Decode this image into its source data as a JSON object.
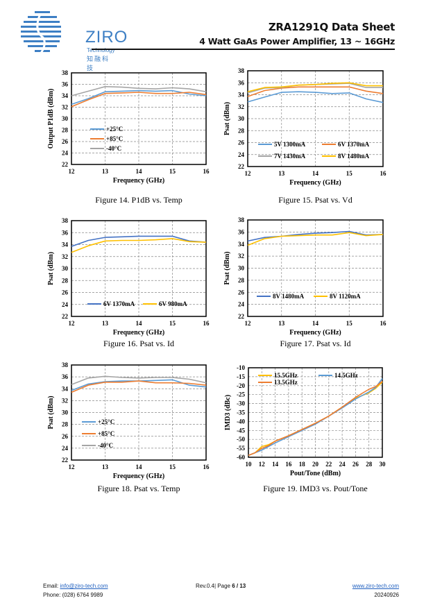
{
  "header": {
    "title": "ZRA1291Q Data Sheet",
    "subtitle": "4 Watt GaAs Power Amplifier, 13 ~ 16GHz",
    "logo_text": "ZIRO",
    "logo_sub": "Technology",
    "logo_cn": "知融科技"
  },
  "footer": {
    "email_label": "Email:",
    "email": "info@ziro-tech.com",
    "phone_label": "Phone:",
    "phone": "(028) 6764 9989",
    "rev": "Rev.0.4|",
    "page_label": "Page",
    "page": "6 / 13",
    "website": "www.ziro-tech.com",
    "date": "20240926"
  },
  "colors": {
    "blue": "#5B9BD5",
    "darkblue": "#4472C4",
    "orange": "#ED7D31",
    "gray": "#A5A5A5",
    "yellow": "#FFC000"
  },
  "chart_data": [
    {
      "type": "line",
      "caption": "Figure 14. P1dB vs. Temp",
      "xlabel": "Frequency (GHz)",
      "ylabel": "Output P1dB (dBm)",
      "xlim": [
        12,
        16
      ],
      "ylim": [
        22,
        38
      ],
      "xticks": [
        12,
        13,
        14,
        15,
        16
      ],
      "yticks": [
        22,
        24,
        26,
        28,
        30,
        32,
        34,
        36,
        38
      ],
      "grid": true,
      "legend": "bottom-left",
      "x": [
        12,
        12.5,
        13,
        13.5,
        14,
        14.5,
        15,
        15.5,
        16
      ],
      "series": [
        {
          "name": "+25°C",
          "color": "#5B9BD5",
          "values": [
            32.5,
            33.5,
            34.7,
            34.8,
            34.9,
            34.8,
            34.9,
            34.3,
            34.0
          ]
        },
        {
          "name": "+85°C",
          "color": "#ED7D31",
          "values": [
            32.1,
            33.3,
            34.4,
            34.5,
            34.6,
            34.4,
            34.4,
            34.6,
            34.2
          ]
        },
        {
          "name": "-40°C",
          "color": "#A5A5A5",
          "values": [
            34.0,
            34.8,
            35.6,
            35.5,
            35.3,
            35.2,
            35.4,
            35.2,
            34.7
          ]
        }
      ]
    },
    {
      "type": "line",
      "caption": "Figure 15. Psat vs. Vd",
      "xlabel": "Frequency (GHz)",
      "ylabel": "Psat (dBm)",
      "xlim": [
        12,
        16
      ],
      "ylim": [
        22,
        38
      ],
      "xticks": [
        12,
        13,
        14,
        15,
        16
      ],
      "yticks": [
        22,
        24,
        26,
        28,
        30,
        32,
        34,
        36,
        38
      ],
      "grid": true,
      "legend": "bottom",
      "x": [
        12,
        12.5,
        13,
        13.5,
        14,
        14.5,
        15,
        15.5,
        16
      ],
      "series": [
        {
          "name": "5V 1300mA",
          "color": "#5B9BD5",
          "values": [
            32.8,
            33.6,
            34.4,
            34.5,
            34.4,
            34.2,
            34.3,
            33.3,
            32.7
          ]
        },
        {
          "name": "6V 1370mA",
          "color": "#ED7D31",
          "values": [
            33.7,
            34.7,
            35.1,
            35.3,
            35.3,
            35.3,
            35.3,
            34.6,
            34.2
          ]
        },
        {
          "name": "7V 1430mA",
          "color": "#A5A5A5",
          "values": [
            34.3,
            35.1,
            35.2,
            35.6,
            35.7,
            35.8,
            35.9,
            35.2,
            35.2
          ]
        },
        {
          "name": "8V 1480mA",
          "color": "#FFC000",
          "values": [
            34.5,
            35.2,
            35.3,
            35.6,
            35.7,
            35.9,
            36.0,
            35.5,
            35.5
          ]
        }
      ]
    },
    {
      "type": "line",
      "caption": "Figure 16. Psat vs. Id",
      "xlabel": "Frequency (GHz)",
      "ylabel": "Psat (dBm)",
      "xlim": [
        12,
        16
      ],
      "ylim": [
        22,
        38
      ],
      "xticks": [
        12,
        13,
        14,
        15,
        16
      ],
      "yticks": [
        22,
        24,
        26,
        28,
        30,
        32,
        34,
        36,
        38
      ],
      "grid": true,
      "legend": "bottom",
      "x": [
        12,
        12.5,
        13,
        13.5,
        14,
        14.5,
        15,
        15.5,
        16
      ],
      "series": [
        {
          "name": "6V 1370mA",
          "color": "#4472C4",
          "values": [
            33.7,
            34.7,
            35.2,
            35.3,
            35.4,
            35.4,
            35.4,
            34.6,
            34.4
          ]
        },
        {
          "name": "6V 980mA",
          "color": "#FFC000",
          "values": [
            32.7,
            33.8,
            34.6,
            34.7,
            34.7,
            34.8,
            35.0,
            34.5,
            34.4
          ]
        }
      ]
    },
    {
      "type": "line",
      "caption": "Figure 17. Psat vs. Id",
      "xlabel": "Frequency (GHz)",
      "ylabel": "Psat (dBm)",
      "xlim": [
        12,
        16
      ],
      "ylim": [
        22,
        38
      ],
      "xticks": [
        12,
        13,
        14,
        15,
        16
      ],
      "yticks": [
        22,
        24,
        26,
        28,
        30,
        32,
        34,
        36,
        38
      ],
      "grid": true,
      "legend": "bottom",
      "x": [
        12,
        12.5,
        13,
        13.5,
        14,
        14.5,
        15,
        15.5,
        16
      ],
      "series": [
        {
          "name": "8V 1480mA",
          "color": "#4472C4",
          "values": [
            34.5,
            35.1,
            35.3,
            35.6,
            35.8,
            35.9,
            36.1,
            35.5,
            35.6
          ]
        },
        {
          "name": "8V 1120mA",
          "color": "#FFC000",
          "values": [
            33.8,
            34.9,
            35.3,
            35.4,
            35.5,
            35.5,
            35.9,
            35.4,
            35.6
          ]
        }
      ]
    },
    {
      "type": "line",
      "caption": "Figure 18. Psat vs. Temp",
      "xlabel": "Frequency (GHz)",
      "ylabel": "Psat (dBm)",
      "xlim": [
        12,
        16
      ],
      "ylim": [
        22,
        38
      ],
      "xticks": [
        12,
        13,
        14,
        15,
        16
      ],
      "yticks": [
        22,
        24,
        26,
        28,
        30,
        32,
        34,
        36,
        38
      ],
      "grid": true,
      "legend": "bottom-left",
      "x": [
        12,
        12.5,
        13,
        13.5,
        14,
        14.5,
        15,
        15.5,
        16
      ],
      "series": [
        {
          "name": "+25°C",
          "color": "#5B9BD5",
          "values": [
            33.7,
            34.8,
            35.2,
            35.3,
            35.3,
            35.4,
            35.5,
            34.6,
            34.3
          ]
        },
        {
          "name": "+85°C",
          "color": "#ED7D31",
          "values": [
            33.4,
            34.6,
            35.1,
            35.1,
            35.3,
            35.0,
            35.0,
            34.9,
            34.6
          ]
        },
        {
          "name": "-40°C",
          "color": "#A5A5A5",
          "values": [
            34.7,
            35.8,
            36.1,
            35.9,
            35.8,
            35.9,
            35.9,
            35.6,
            35.0
          ]
        }
      ]
    },
    {
      "type": "line",
      "caption": "Figure 19. IMD3 vs. Pout/Tone",
      "xlabel": "Pout/Tone (dBm)",
      "ylabel": "IMD3 (dBc)",
      "xlim": [
        10,
        30
      ],
      "ylim": [
        -60,
        -10
      ],
      "xticks": [
        10,
        12,
        14,
        16,
        18,
        20,
        22,
        24,
        26,
        28,
        30
      ],
      "yticks": [
        -60,
        -55,
        -50,
        -45,
        -40,
        -35,
        -30,
        -25,
        -20,
        -15,
        -10
      ],
      "grid": true,
      "legend": "top",
      "x": [
        10,
        11,
        12,
        13,
        14,
        16,
        18,
        20,
        22,
        24,
        26,
        28,
        29,
        30
      ],
      "series": [
        {
          "name": "15.5GHz",
          "color": "#FFC000",
          "values": [
            -59,
            -57.5,
            -54,
            -53,
            -51,
            -48,
            -44.5,
            -41,
            -37,
            -32,
            -27,
            -24,
            -21.5,
            -18
          ]
        },
        {
          "name": "14.5GHz",
          "color": "#5B9BD5",
          "values": [
            -59,
            -57.5,
            -56,
            -54,
            -52,
            -48.5,
            -45,
            -41.5,
            -37,
            -32.5,
            -27.5,
            -23.5,
            -21,
            -16
          ]
        },
        {
          "name": "13.5GHz",
          "color": "#ED7D31",
          "values": [
            -59,
            -57.5,
            -55,
            -53.5,
            -51,
            -48,
            -44.5,
            -41,
            -37,
            -32,
            -26.5,
            -22,
            -20.5,
            -17.5
          ]
        }
      ]
    }
  ]
}
